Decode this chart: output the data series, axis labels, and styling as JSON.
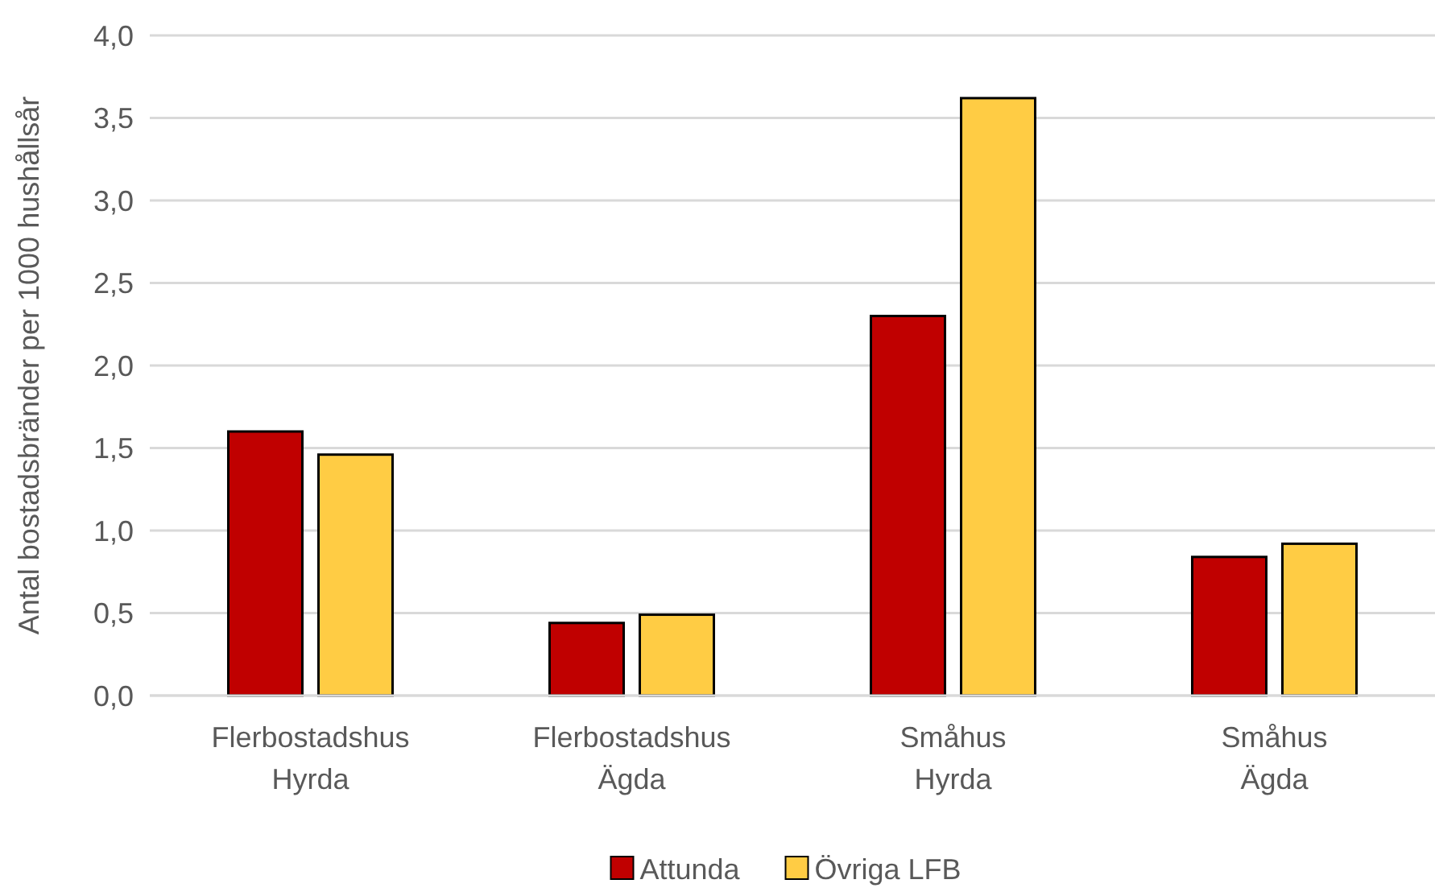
{
  "chart_data": {
    "type": "bar",
    "ylabel": "Antal bostadsbränder per 1000 hushållsår",
    "categories": [
      "Flerbostadshus\nHyrda",
      "Flerbostadshus\nÄgda",
      "Småhus\nHyrda",
      "Småhus\nÄgda"
    ],
    "series": [
      {
        "name": "Attunda",
        "color": "#c00000",
        "values": [
          1.6,
          0.44,
          2.3,
          0.84
        ]
      },
      {
        "name": "Övriga LFB",
        "color": "#ffcc44",
        "values": [
          1.46,
          0.49,
          3.62,
          0.92
        ]
      }
    ],
    "ylim": [
      0,
      4
    ],
    "yticks": [
      {
        "value": 0,
        "label": "0,0"
      },
      {
        "value": 0.5,
        "label": "0,5"
      },
      {
        "value": 1,
        "label": "1,0"
      },
      {
        "value": 1.5,
        "label": "1,5"
      },
      {
        "value": 2,
        "label": "2,0"
      },
      {
        "value": 2.5,
        "label": "2,5"
      },
      {
        "value": 3,
        "label": "3,0"
      },
      {
        "value": 3.5,
        "label": "3,5"
      },
      {
        "value": 4,
        "label": "4,0"
      }
    ],
    "grid": "y",
    "legend": "bottom"
  }
}
